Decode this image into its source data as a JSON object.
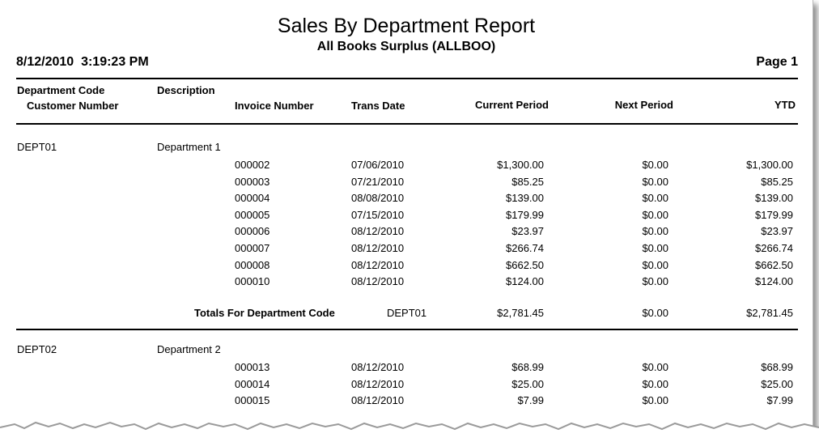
{
  "report": {
    "title": "Sales By Department Report",
    "company": "All Books Surplus (ALLBOO)",
    "printed_at": "8/12/2010  3:19:23 PM",
    "page_label": "Page 1"
  },
  "columns": {
    "department_code": "Department Code",
    "customer_number": "Customer Number",
    "description": "Description",
    "invoice_number": "Invoice Number",
    "trans_date": "Trans Date",
    "current_period": "Current Period",
    "next_period": "Next Period",
    "ytd": "YTD"
  },
  "departments": [
    {
      "code": "DEPT01",
      "description": "Department 1",
      "rows": [
        {
          "invoice": "000002",
          "date": "07/06/2010",
          "current": "$1,300.00",
          "next": "$0.00",
          "ytd": "$1,300.00"
        },
        {
          "invoice": "000003",
          "date": "07/21/2010",
          "current": "$85.25",
          "next": "$0.00",
          "ytd": "$85.25"
        },
        {
          "invoice": "000004",
          "date": "08/08/2010",
          "current": "$139.00",
          "next": "$0.00",
          "ytd": "$139.00"
        },
        {
          "invoice": "000005",
          "date": "07/15/2010",
          "current": "$179.99",
          "next": "$0.00",
          "ytd": "$179.99"
        },
        {
          "invoice": "000006",
          "date": "08/12/2010",
          "current": "$23.97",
          "next": "$0.00",
          "ytd": "$23.97"
        },
        {
          "invoice": "000007",
          "date": "08/12/2010",
          "current": "$266.74",
          "next": "$0.00",
          "ytd": "$266.74"
        },
        {
          "invoice": "000008",
          "date": "08/12/2010",
          "current": "$662.50",
          "next": "$0.00",
          "ytd": "$662.50"
        },
        {
          "invoice": "000010",
          "date": "08/12/2010",
          "current": "$124.00",
          "next": "$0.00",
          "ytd": "$124.00"
        }
      ],
      "totals": {
        "label": "Totals For Department Code",
        "code": "DEPT01",
        "current": "$2,781.45",
        "next": "$0.00",
        "ytd": "$2,781.45"
      }
    },
    {
      "code": "DEPT02",
      "description": "Department 2",
      "rows": [
        {
          "invoice": "000013",
          "date": "08/12/2010",
          "current": "$68.99",
          "next": "$0.00",
          "ytd": "$68.99"
        },
        {
          "invoice": "000014",
          "date": "08/12/2010",
          "current": "$25.00",
          "next": "$0.00",
          "ytd": "$25.00"
        },
        {
          "invoice": "000015",
          "date": "08/12/2010",
          "current": "$7.99",
          "next": "$0.00",
          "ytd": "$7.99"
        }
      ]
    }
  ]
}
